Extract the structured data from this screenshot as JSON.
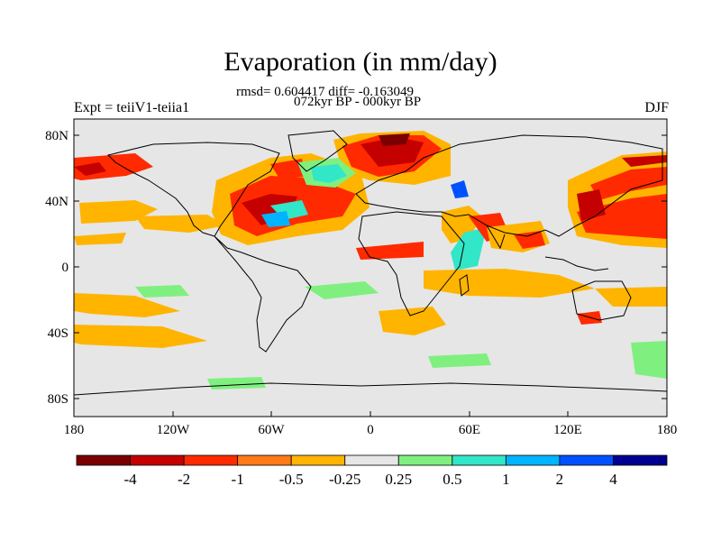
{
  "title": "Evaporation (in mm/day)",
  "stats": "rmsd= 0.604417 diff= -0.163049",
  "period": "072kyr BP - 000kyr BP",
  "left_label": "Expt = teiiV1-teiia1",
  "right_label": "DJF",
  "axes": {
    "lat_ticks": [
      "80N",
      "40N",
      "0",
      "40S",
      "80S"
    ],
    "lon_ticks": [
      "180",
      "120W",
      "60W",
      "0",
      "60E",
      "120E",
      "180"
    ]
  },
  "colorbar": {
    "labels": [
      "-4",
      "-2",
      "-1",
      "-0.5",
      "-0.25",
      "0.25",
      "0.5",
      "1",
      "2",
      "4"
    ],
    "colors": [
      "#7a0000",
      "#c40000",
      "#ff2a00",
      "#ff7a18",
      "#ffb400",
      "#e6e6e6",
      "#7ff07f",
      "#32e6c8",
      "#00b4ff",
      "#0050ff",
      "#000090"
    ]
  },
  "colors": {
    "ocean_background": "#e6e6e6",
    "coastline": "#000000"
  }
}
